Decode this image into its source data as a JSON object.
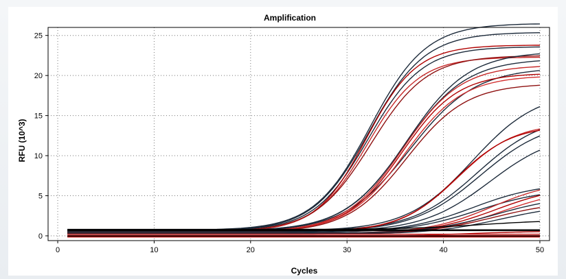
{
  "chart_data": {
    "type": "line",
    "title": "Amplification",
    "xlabel": "Cycles",
    "ylabel": "RFU (10^3)",
    "xlim": [
      -1,
      51
    ],
    "ylim": [
      -0.6,
      26
    ],
    "x_ticks": [
      0,
      10,
      20,
      30,
      40,
      50
    ],
    "y_ticks": [
      0,
      5,
      10,
      15,
      20,
      25
    ],
    "grid": true,
    "x_start_cycle": 1,
    "x_end_cycle": 50,
    "series": [
      {
        "color": "#1c2a3a",
        "baseline": 0.7,
        "plateau": 25.8,
        "midpoint": 32.4,
        "slope": 2.9
      },
      {
        "color": "#1c2a3a",
        "baseline": 0.6,
        "plateau": 24.8,
        "midpoint": 32.3,
        "slope": 2.9
      },
      {
        "color": "#1c2a3a",
        "baseline": 0.6,
        "plateau": 23.0,
        "midpoint": 32.2,
        "slope": 2.8
      },
      {
        "color": "#b00000",
        "baseline": 0.5,
        "plateau": 23.3,
        "midpoint": 32.0,
        "slope": 2.6
      },
      {
        "color": "#c62828",
        "baseline": 0.5,
        "plateau": 21.8,
        "midpoint": 32.1,
        "slope": 2.7
      },
      {
        "color": "#8e1010",
        "baseline": 0.5,
        "plateau": 22.0,
        "midpoint": 32.5,
        "slope": 2.9
      },
      {
        "color": "#1c2a3a",
        "baseline": 0.6,
        "plateau": 22.4,
        "midpoint": 36.2,
        "slope": 3.2
      },
      {
        "color": "#1c2a3a",
        "baseline": 0.6,
        "plateau": 21.5,
        "midpoint": 36.0,
        "slope": 3.2
      },
      {
        "color": "#1c2a3a",
        "baseline": 0.5,
        "plateau": 20.5,
        "midpoint": 36.5,
        "slope": 3.4
      },
      {
        "color": "#c62828",
        "baseline": 0.5,
        "plateau": 20.8,
        "midpoint": 35.8,
        "slope": 3.0
      },
      {
        "color": "#b00000",
        "baseline": 0.5,
        "plateau": 19.8,
        "midpoint": 35.7,
        "slope": 2.9
      },
      {
        "color": "#d32f2f",
        "baseline": 0.5,
        "plateau": 19.5,
        "midpoint": 36.0,
        "slope": 3.0
      },
      {
        "color": "#8e1010",
        "baseline": 0.4,
        "plateau": 18.6,
        "midpoint": 36.2,
        "slope": 3.1
      },
      {
        "color": "#1c2a3a",
        "baseline": 0.6,
        "plateau": 17.5,
        "midpoint": 43.0,
        "slope": 3.4
      },
      {
        "color": "#1c2a3a",
        "baseline": 0.6,
        "plateau": 14.5,
        "midpoint": 43.5,
        "slope": 3.4
      },
      {
        "color": "#1c2a3a",
        "baseline": 0.5,
        "plateau": 14.0,
        "midpoint": 43.8,
        "slope": 3.5
      },
      {
        "color": "#c62828",
        "baseline": 0.5,
        "plateau": 13.6,
        "midpoint": 41.5,
        "slope": 3.0
      },
      {
        "color": "#b00000",
        "baseline": 0.5,
        "plateau": 13.3,
        "midpoint": 41.3,
        "slope": 2.9
      },
      {
        "color": "#1c2a3a",
        "baseline": 0.5,
        "plateau": 12.5,
        "midpoint": 44.8,
        "slope": 3.5
      },
      {
        "color": "#1c2a3a",
        "baseline": 0.4,
        "plateau": 6.2,
        "midpoint": 43.0,
        "slope": 3.5
      },
      {
        "color": "#1c2a3a",
        "baseline": 0.4,
        "plateau": 5.5,
        "midpoint": 43.5,
        "slope": 3.6
      },
      {
        "color": "#c62828",
        "baseline": 0.3,
        "plateau": 6.6,
        "midpoint": 45.0,
        "slope": 3.3
      },
      {
        "color": "#b00000",
        "baseline": 0.3,
        "plateau": 6.0,
        "midpoint": 45.5,
        "slope": 3.4
      },
      {
        "color": "#d32f2f",
        "baseline": 0.3,
        "plateau": 5.6,
        "midpoint": 46.2,
        "slope": 3.4
      },
      {
        "color": "#8e1010",
        "baseline": 0.2,
        "plateau": 4.2,
        "midpoint": 45.2,
        "slope": 3.6
      },
      {
        "color": "#1c2a3a",
        "baseline": 0.3,
        "plateau": 4.8,
        "midpoint": 45.5,
        "slope": 3.6
      },
      {
        "color": "#1c2a3a",
        "baseline": 0.2,
        "plateau": 3.8,
        "midpoint": 46.0,
        "slope": 3.6
      },
      {
        "color": "#000000",
        "baseline": 0.8,
        "plateau": 1.2,
        "midpoint": 44.0,
        "slope": 4.0
      },
      {
        "color": "#b00000",
        "baseline": -0.1,
        "plateau": 0.7,
        "midpoint": 42.0,
        "slope": 4.0
      },
      {
        "color": "#000000",
        "baseline": 0.75,
        "plateau": 0.0,
        "midpoint": 50.0,
        "slope": 5.0
      },
      {
        "color": "#000000",
        "baseline": 0.65,
        "plateau": 0.0,
        "midpoint": 50.0,
        "slope": 5.0
      },
      {
        "color": "#c62828",
        "baseline": 0.2,
        "plateau": 0.0,
        "midpoint": 50.0,
        "slope": 5.0
      },
      {
        "color": "#8e1010",
        "baseline": 0.05,
        "plateau": 0.0,
        "midpoint": 50.0,
        "slope": 5.0
      },
      {
        "color": "#000000",
        "baseline": -0.05,
        "plateau": 0.0,
        "midpoint": 50.0,
        "slope": 5.0
      },
      {
        "color": "#b00000",
        "baseline": -0.15,
        "plateau": 0.0,
        "midpoint": 50.0,
        "slope": 5.0
      }
    ]
  }
}
